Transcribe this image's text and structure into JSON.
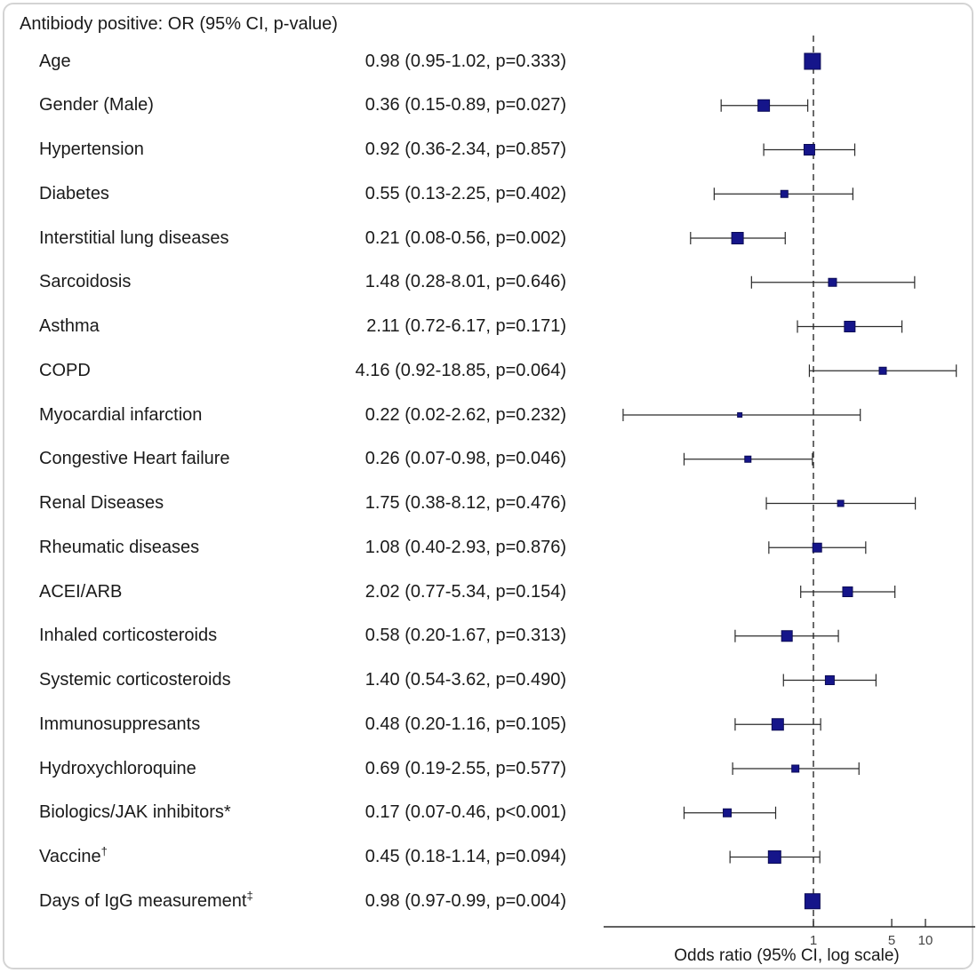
{
  "chart_data": {
    "type": "forest",
    "title": "Antibiody positive: OR (95% CI, p-value)",
    "xlabel": "Odds ratio (95% CI, log scale)",
    "xscale": "log",
    "xlim": [
      0.013,
      27
    ],
    "ref_line": 1,
    "xticks": [
      "1",
      "5",
      "10"
    ],
    "xtick_values": [
      1,
      5,
      10
    ],
    "marker_color": "#15158a",
    "marker_border_color": "#0c0c55",
    "line_color": "#2b2b2b",
    "rows": [
      {
        "label": "Age",
        "sup": "",
        "display": "0.98 (0.95-1.02, p=0.333)",
        "or": 0.98,
        "ci_low": 0.95,
        "ci_high": 1.02,
        "p": "p=0.333",
        "size": 18
      },
      {
        "label": "Gender (Male)",
        "sup": "",
        "display": "0.36 (0.15-0.89, p=0.027)",
        "or": 0.36,
        "ci_low": 0.15,
        "ci_high": 0.89,
        "p": "p=0.027",
        "size": 13
      },
      {
        "label": "Hypertension",
        "sup": "",
        "display": "0.92 (0.36-2.34, p=0.857)",
        "or": 0.92,
        "ci_low": 0.36,
        "ci_high": 2.34,
        "p": "p=0.857",
        "size": 12
      },
      {
        "label": "Diabetes",
        "sup": "",
        "display": "0.55 (0.13-2.25, p=0.402)",
        "or": 0.55,
        "ci_low": 0.13,
        "ci_high": 2.25,
        "p": "p=0.402",
        "size": 8
      },
      {
        "label": "Interstitial lung diseases",
        "sup": "",
        "display": "0.21 (0.08-0.56, p=0.002)",
        "or": 0.21,
        "ci_low": 0.08,
        "ci_high": 0.56,
        "p": "p=0.002",
        "size": 13
      },
      {
        "label": "Sarcoidosis",
        "sup": "",
        "display": "1.48 (0.28-8.01, p=0.646)",
        "or": 1.48,
        "ci_low": 0.28,
        "ci_high": 8.01,
        "p": "p=0.646",
        "size": 9
      },
      {
        "label": "Asthma",
        "sup": "",
        "display": "2.11 (0.72-6.17, p=0.171)",
        "or": 2.11,
        "ci_low": 0.72,
        "ci_high": 6.17,
        "p": "p=0.171",
        "size": 12
      },
      {
        "label": "COPD",
        "sup": "",
        "display": "4.16 (0.92-18.85, p=0.064)",
        "or": 4.16,
        "ci_low": 0.92,
        "ci_high": 18.85,
        "p": "p=0.064",
        "size": 8
      },
      {
        "label": "Myocardial infarction",
        "sup": "",
        "display": "0.22 (0.02-2.62, p=0.232)",
        "or": 0.22,
        "ci_low": 0.02,
        "ci_high": 2.62,
        "p": "p=0.232",
        "size": 5
      },
      {
        "label": "Congestive Heart failure",
        "sup": "",
        "display": "0.26 (0.07-0.98, p=0.046)",
        "or": 0.26,
        "ci_low": 0.07,
        "ci_high": 0.98,
        "p": "p=0.046",
        "size": 7
      },
      {
        "label": "Renal Diseases",
        "sup": "",
        "display": "1.75 (0.38-8.12, p=0.476)",
        "or": 1.75,
        "ci_low": 0.38,
        "ci_high": 8.12,
        "p": "p=0.476",
        "size": 7
      },
      {
        "label": "Rheumatic diseases",
        "sup": "",
        "display": "1.08 (0.40-2.93, p=0.876)",
        "or": 1.08,
        "ci_low": 0.4,
        "ci_high": 2.93,
        "p": "p=0.876",
        "size": 10
      },
      {
        "label": "ACEI/ARB",
        "sup": "",
        "display": "2.02 (0.77-5.34, p=0.154)",
        "or": 2.02,
        "ci_low": 0.77,
        "ci_high": 5.34,
        "p": "p=0.154",
        "size": 11
      },
      {
        "label": "Inhaled corticosteroids",
        "sup": "",
        "display": "0.58 (0.20-1.67, p=0.313)",
        "or": 0.58,
        "ci_low": 0.2,
        "ci_high": 1.67,
        "p": "p=0.313",
        "size": 12
      },
      {
        "label": "Systemic corticosteroids",
        "sup": "",
        "display": "1.40 (0.54-3.62, p=0.490)",
        "or": 1.4,
        "ci_low": 0.54,
        "ci_high": 3.62,
        "p": "p=0.490",
        "size": 10
      },
      {
        "label": "Immunosuppresants",
        "sup": "",
        "display": "0.48 (0.20-1.16, p=0.105)",
        "or": 0.48,
        "ci_low": 0.2,
        "ci_high": 1.16,
        "p": "p=0.105",
        "size": 13
      },
      {
        "label": "Hydroxychloroquine",
        "sup": "",
        "display": "0.69 (0.19-2.55, p=0.577)",
        "or": 0.69,
        "ci_low": 0.19,
        "ci_high": 2.55,
        "p": "p=0.577",
        "size": 8
      },
      {
        "label": "Biologics/JAK inhibitors*",
        "sup": "",
        "display": "0.17 (0.07-0.46, p<0.001)",
        "or": 0.17,
        "ci_low": 0.07,
        "ci_high": 0.46,
        "p": "p<0.001",
        "size": 9
      },
      {
        "label": "Vaccine",
        "sup": "†",
        "display": "0.45 (0.18-1.14, p=0.094)",
        "or": 0.45,
        "ci_low": 0.18,
        "ci_high": 1.14,
        "p": "p=0.094",
        "size": 14
      },
      {
        "label": "Days of IgG measurement",
        "sup": "‡",
        "display": "0.98 (0.97-0.99, p=0.004)",
        "or": 0.98,
        "ci_low": 0.97,
        "ci_high": 0.99,
        "p": "p=0.004",
        "size": 17
      }
    ]
  }
}
